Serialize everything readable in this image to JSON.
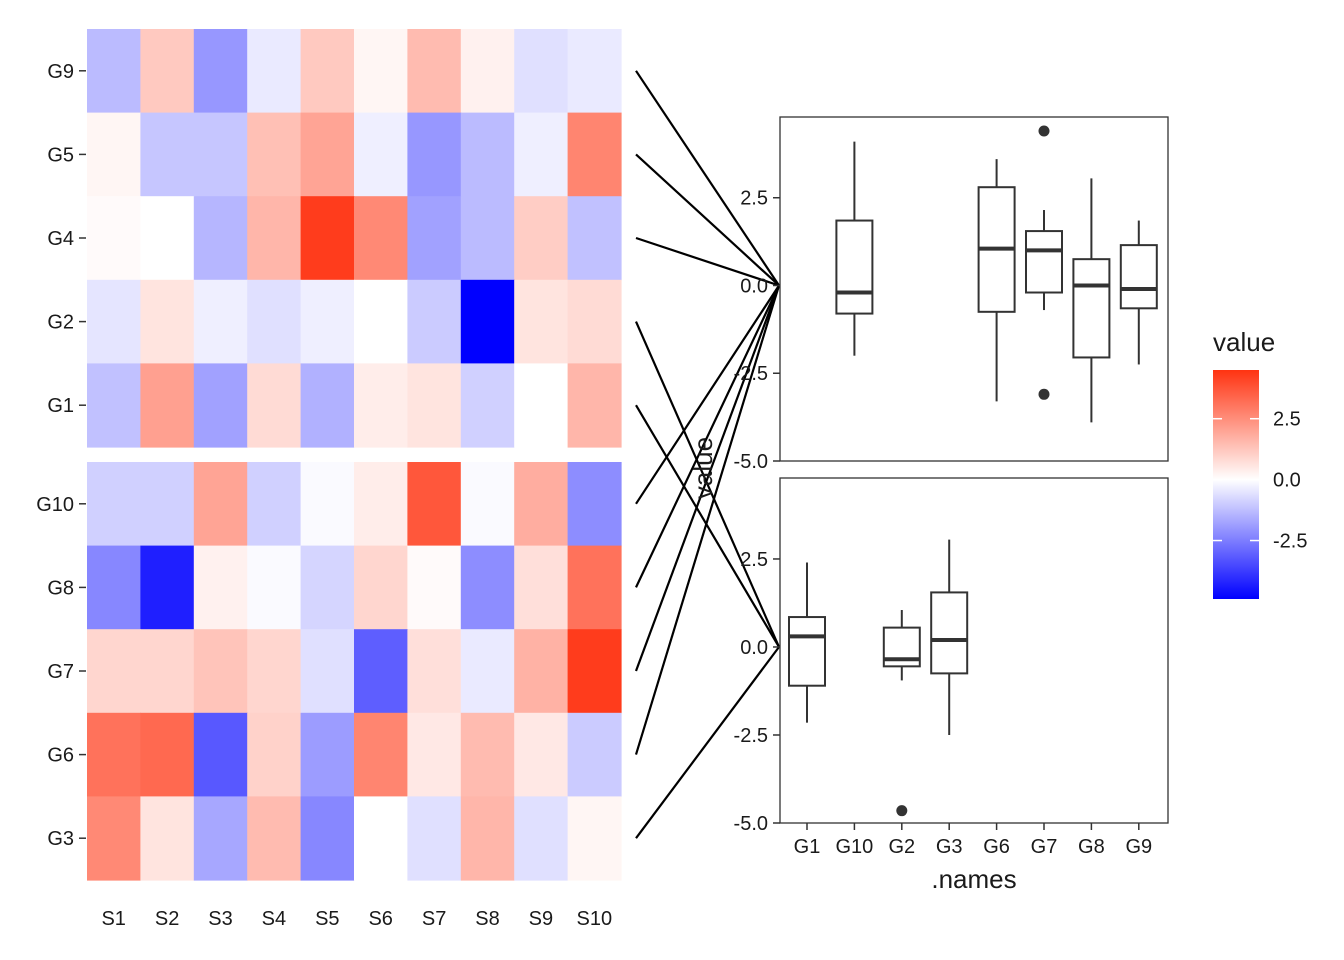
{
  "chart_data": [
    {
      "type": "heatmap",
      "columns": [
        "S1",
        "S2",
        "S3",
        "S4",
        "S5",
        "S6",
        "S7",
        "S8",
        "S9",
        "S10"
      ],
      "row_groups": [
        {
          "rows": [
            {
              "name": "G9",
              "values": [
                -1.3,
                1.2,
                -2.0,
                -0.4,
                1.2,
                0.2,
                1.5,
                0.3,
                -0.6,
                -0.4
              ]
            },
            {
              "name": "G5",
              "values": [
                0.2,
                -1.1,
                -1.1,
                1.4,
                2.0,
                -0.3,
                -2.0,
                -1.3,
                -0.3,
                2.7
              ]
            },
            {
              "name": "G4",
              "values": [
                0.1,
                0.0,
                -1.4,
                1.6,
                4.3,
                2.6,
                -1.8,
                -1.3,
                1.1,
                -1.2
              ]
            },
            {
              "name": "G2",
              "values": [
                -0.5,
                0.6,
                -0.3,
                -0.6,
                -0.3,
                0.0,
                -1.0,
                -4.9,
                0.6,
                0.8
              ]
            },
            {
              "name": "G1",
              "values": [
                -1.2,
                2.1,
                -1.8,
                0.8,
                -1.5,
                0.4,
                0.6,
                -0.9,
                0.0,
                1.6
              ]
            }
          ]
        },
        {
          "rows": [
            {
              "name": "G10",
              "values": [
                -0.9,
                -0.9,
                2.0,
                -0.9,
                -0.1,
                0.4,
                3.7,
                -0.1,
                1.8,
                -2.2
              ]
            },
            {
              "name": "G8",
              "values": [
                -2.3,
                -4.3,
                0.3,
                -0.1,
                -0.8,
                0.9,
                0.1,
                -2.2,
                0.7,
                3.1
              ]
            },
            {
              "name": "G7",
              "values": [
                0.9,
                0.9,
                1.3,
                0.9,
                -0.6,
                -3.1,
                0.7,
                -0.4,
                1.7,
                4.3
              ]
            },
            {
              "name": "G6",
              "values": [
                3.1,
                3.3,
                -3.2,
                1.0,
                -1.9,
                2.7,
                0.5,
                1.5,
                0.5,
                -1.0
              ]
            },
            {
              "name": "G3",
              "values": [
                2.6,
                0.6,
                -1.7,
                1.5,
                -2.3,
                0.0,
                -0.6,
                1.6,
                -0.6,
                0.2
              ]
            }
          ]
        }
      ],
      "legend": {
        "title": "value",
        "ticks": [
          2.5,
          0.0,
          -2.5
        ],
        "tick_labels": [
          "2.5",
          "0.0",
          "-2.5"
        ],
        "position": "right"
      },
      "color_scale": {
        "low": "#0000FF",
        "mid": "#FFFFFF",
        "high": "#FF3311",
        "limits": [
          -4.9,
          4.5
        ]
      }
    },
    {
      "type": "box",
      "ylabel": "value",
      "xlabel": ".names",
      "categories": [
        "G1",
        "G10",
        "G2",
        "G3",
        "G6",
        "G7",
        "G8",
        "G9"
      ],
      "yticks": [
        2.5,
        0.0,
        -2.5,
        -5.0
      ],
      "ytick_labels": [
        "2.5",
        "0.0",
        "-2.5",
        "-5.0"
      ],
      "ylim": [
        -5.0,
        4.8
      ],
      "panels": [
        {
          "label": "upper",
          "boxes": [
            {
              "category": "G10",
              "min": -2.0,
              "q1": -0.8,
              "median": -0.2,
              "q3": 1.85,
              "max": 4.1,
              "outliers": []
            },
            {
              "category": "G6",
              "min": -3.3,
              "q1": -0.75,
              "median": 1.05,
              "q3": 2.8,
              "max": 3.6,
              "outliers": []
            },
            {
              "category": "G7",
              "min": -0.7,
              "q1": -0.2,
              "median": 1.0,
              "q3": 1.55,
              "max": 2.15,
              "outliers": [
                4.4,
                -3.1
              ]
            },
            {
              "category": "G8",
              "min": -3.9,
              "q1": -2.05,
              "median": 0.0,
              "q3": 0.75,
              "max": 3.05,
              "outliers": []
            },
            {
              "category": "G9",
              "min": -2.25,
              "q1": -0.65,
              "median": -0.1,
              "q3": 1.15,
              "max": 1.85,
              "outliers": []
            }
          ]
        },
        {
          "label": "lower",
          "boxes": [
            {
              "category": "G1",
              "min": -2.15,
              "q1": -1.1,
              "median": 0.3,
              "q3": 0.85,
              "max": 2.4,
              "outliers": []
            },
            {
              "category": "G2",
              "min": -0.95,
              "q1": -0.55,
              "median": -0.35,
              "q3": 0.55,
              "max": 1.05,
              "outliers": [
                -4.65
              ]
            },
            {
              "category": "G3",
              "min": -2.5,
              "q1": -0.75,
              "median": 0.2,
              "q3": 1.55,
              "max": 3.05,
              "outliers": []
            }
          ]
        }
      ]
    }
  ]
}
